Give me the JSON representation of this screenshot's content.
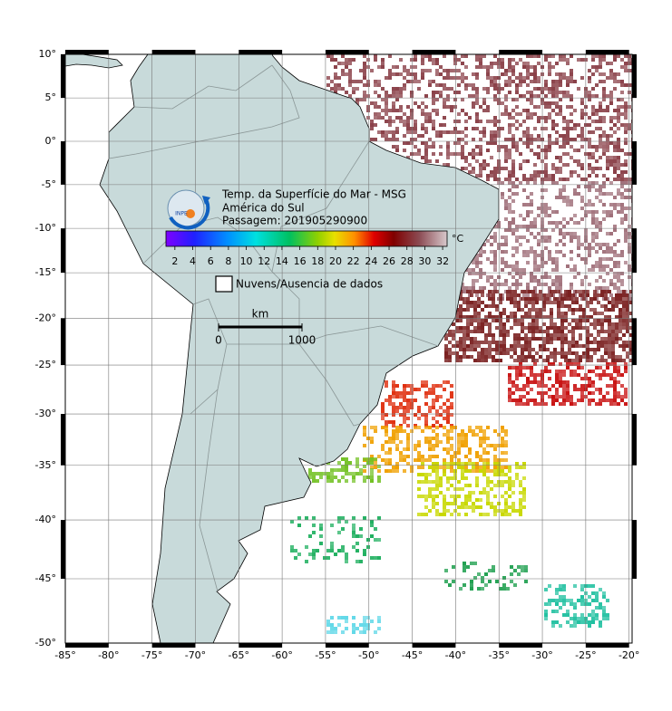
{
  "map": {
    "title": "Temp. da Superfície do Mar - MSG",
    "region": "América do Sul",
    "pass": "Passagem: 201905290900",
    "logo": "INPE",
    "colorbar": {
      "unit": "°C",
      "lim": [
        1,
        32.5
      ],
      "ticks": [
        2,
        4,
        6,
        8,
        10,
        12,
        14,
        16,
        18,
        20,
        22,
        24,
        26,
        28,
        30,
        32
      ]
    },
    "legend": "Nuvens/Ausencia de dados",
    "scale_bar": {
      "unit": "km",
      "ticks": [
        0,
        1000
      ]
    },
    "lon_ticks": [
      {
        "value": -85,
        "label": "-85°"
      },
      {
        "value": -80,
        "label": "-80°"
      },
      {
        "value": -75,
        "label": "-75°"
      },
      {
        "value": -70,
        "label": "-70°"
      },
      {
        "value": -65,
        "label": "-65°"
      },
      {
        "value": -60,
        "label": "-60°"
      },
      {
        "value": -55,
        "label": "-55°"
      },
      {
        "value": -50,
        "label": "-50°"
      },
      {
        "value": -45,
        "label": "-45°"
      },
      {
        "value": -40,
        "label": "-40°"
      },
      {
        "value": -35,
        "label": "-35°"
      },
      {
        "value": -30,
        "label": "-30°"
      },
      {
        "value": -25,
        "label": "-25°"
      },
      {
        "value": -20,
        "label": "-20°"
      }
    ],
    "lat_ticks": [
      {
        "value": 10,
        "label": "10°"
      },
      {
        "value": 5,
        "label": "5°"
      },
      {
        "value": 0,
        "label": "0°"
      },
      {
        "value": -5,
        "label": "-5°"
      },
      {
        "value": -10,
        "label": "-10°"
      },
      {
        "value": -15,
        "label": "-15°"
      },
      {
        "value": -20,
        "label": "-20°"
      },
      {
        "value": -25,
        "label": "-25°"
      },
      {
        "value": -30,
        "label": "-30°"
      },
      {
        "value": -35,
        "label": "-35°"
      },
      {
        "value": -40,
        "label": "-40°"
      },
      {
        "value": -45,
        "label": "-45°"
      },
      {
        "value": -50,
        "label": "-50°"
      }
    ]
  }
}
